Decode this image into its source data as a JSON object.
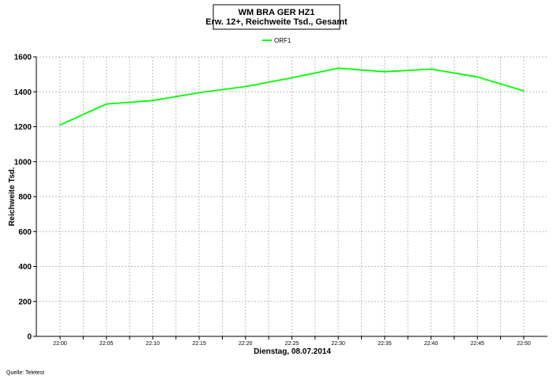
{
  "chart_data": {
    "type": "line",
    "title": "WM BRA GER HZ1",
    "subtitle": "Erw. 12+, Reichweite Tsd., Gesamt",
    "xlabel": "Dienstag, 08.07.2014",
    "ylabel": "Reichweite Tsd.",
    "ylim": [
      0,
      1600
    ],
    "y_ticks": [
      0,
      200,
      400,
      600,
      800,
      1000,
      1200,
      1400,
      1600
    ],
    "categories": [
      "22:00",
      "22:05",
      "22:10",
      "22:15",
      "22:20",
      "22:25",
      "22:30",
      "22:35",
      "22:40",
      "22:45",
      "22:50"
    ],
    "grid": true,
    "legend_position": "top-center",
    "series": [
      {
        "name": "ORF1",
        "color": "#00ff00",
        "values": [
          1210,
          1330,
          1350,
          1395,
          1430,
          1480,
          1535,
          1515,
          1530,
          1485,
          1405
        ]
      }
    ],
    "source": "Quelle: Teletest"
  }
}
